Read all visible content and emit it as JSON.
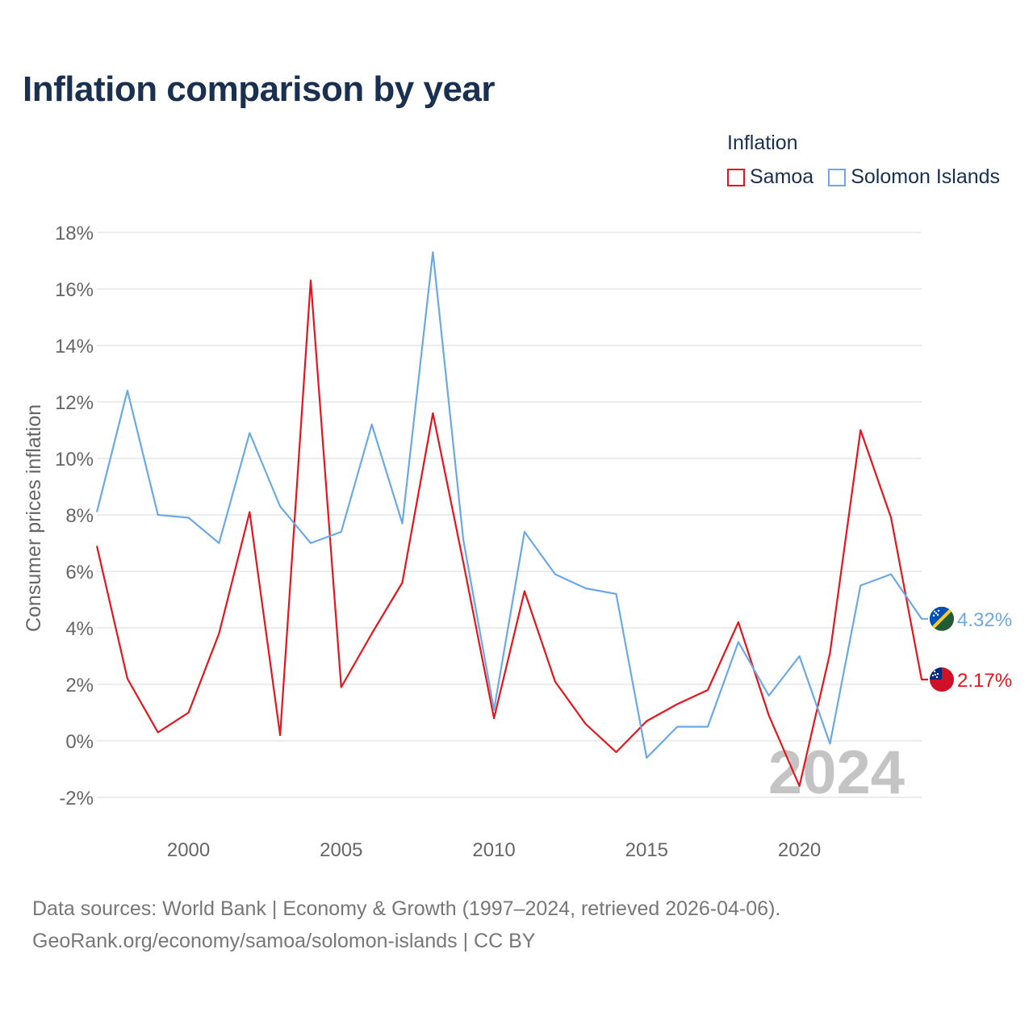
{
  "title": "Inflation comparison by year",
  "legend": {
    "title": "Inflation",
    "items": [
      {
        "name": "Samoa",
        "color": "#e8141c"
      },
      {
        "name": "Solomon Islands",
        "color": "#6aa9e6"
      }
    ]
  },
  "year_watermark": "2024",
  "footer": {
    "line1": "Data sources: World Bank | Economy & Growth (1997–2024, retrieved 2026-04-06).",
    "line2": "GeoRank.org/economy/samoa/solomon-islands | CC BY"
  },
  "chart_data": {
    "type": "line",
    "title": "Inflation comparison by year",
    "xlabel": "",
    "ylabel": "Consumer prices inflation",
    "x": [
      1997,
      1998,
      1999,
      2000,
      2001,
      2002,
      2003,
      2004,
      2005,
      2006,
      2007,
      2008,
      2009,
      2010,
      2011,
      2012,
      2013,
      2014,
      2015,
      2016,
      2017,
      2018,
      2019,
      2020,
      2021,
      2022,
      2023,
      2024
    ],
    "xlim": [
      1997,
      2024
    ],
    "ylim": [
      -2,
      18
    ],
    "x_ticks": [
      2000,
      2005,
      2010,
      2015,
      2020
    ],
    "y_ticks": [
      -2,
      0,
      2,
      4,
      6,
      8,
      10,
      12,
      14,
      16,
      18
    ],
    "y_tick_labels": [
      "-2%",
      "0%",
      "2%",
      "4%",
      "6%",
      "8%",
      "10%",
      "12%",
      "14%",
      "16%",
      "18%"
    ],
    "series": [
      {
        "name": "Samoa",
        "color": "#e8141c",
        "end_label": "2.17%",
        "values": [
          6.9,
          2.2,
          0.3,
          1.0,
          3.8,
          8.1,
          0.2,
          16.3,
          1.9,
          3.8,
          5.6,
          11.6,
          6.3,
          0.8,
          5.3,
          2.1,
          0.6,
          -0.4,
          0.7,
          1.3,
          1.8,
          4.2,
          0.9,
          -1.6,
          3.1,
          11.0,
          7.9,
          2.17
        ]
      },
      {
        "name": "Solomon Islands",
        "color": "#6aa9e6",
        "end_label": "4.32%",
        "values": [
          8.1,
          12.4,
          8.0,
          7.9,
          7.0,
          10.9,
          8.3,
          7.0,
          7.4,
          11.2,
          7.7,
          17.3,
          7.1,
          1.1,
          7.4,
          5.9,
          5.4,
          5.2,
          -0.6,
          0.5,
          0.5,
          3.5,
          1.6,
          3.0,
          -0.1,
          5.5,
          5.9,
          4.32
        ]
      }
    ]
  }
}
